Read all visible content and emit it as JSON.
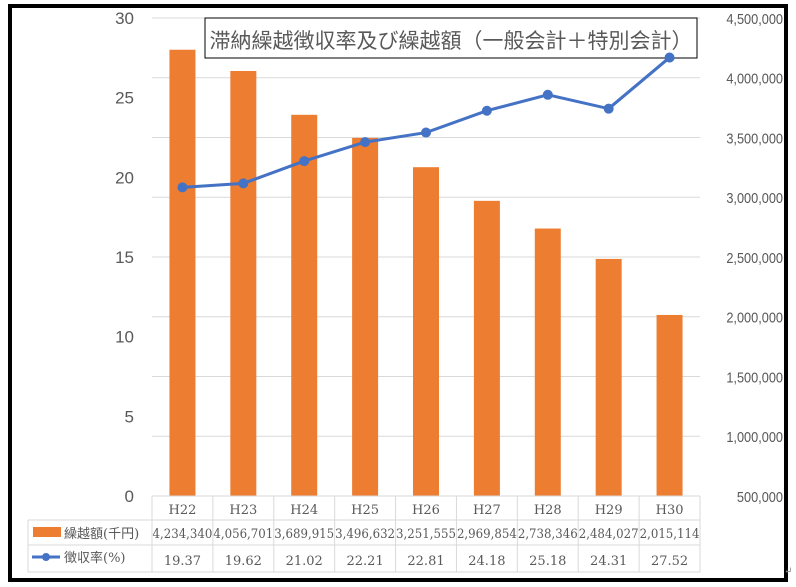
{
  "chart_data": {
    "type": "bar+line",
    "title": "滞納繰越徴収率及び繰越額（一般会計＋特別会計）",
    "categories": [
      "H22",
      "H23",
      "H24",
      "H25",
      "H26",
      "H27",
      "H28",
      "H29",
      "H30"
    ],
    "series": [
      {
        "name": "繰越額(千円)",
        "type": "bar",
        "axis": "right",
        "color": "#ED7D31",
        "values": [
          4234340,
          4056701,
          3689915,
          3496632,
          3251555,
          2969854,
          2738346,
          2484027,
          2015114
        ],
        "labels": [
          "4,234,340",
          "4,056,701",
          "3,689,915",
          "3,496,632",
          "3,251,555",
          "2,969,854",
          "2,738,346",
          "2,484,027",
          "2,015,114"
        ]
      },
      {
        "name": "徴収率(%)",
        "type": "line",
        "axis": "left",
        "color": "#4472C4",
        "values": [
          19.37,
          19.62,
          21.02,
          22.21,
          22.81,
          24.18,
          25.18,
          24.31,
          27.52
        ],
        "labels": [
          "19.37",
          "19.62",
          "21.02",
          "22.21",
          "22.81",
          "24.18",
          "25.18",
          "24.31",
          "27.52"
        ]
      }
    ],
    "left_axis": {
      "ylim": [
        0,
        30
      ],
      "ticks": [
        "0",
        "5",
        "10",
        "15",
        "20",
        "25",
        "30"
      ]
    },
    "right_axis": {
      "ylim": [
        500000,
        4500000
      ],
      "ticks": [
        "500,000",
        "1,000,000",
        "1,500,000",
        "2,000,000",
        "2,500,000",
        "3,000,000",
        "3,500,000",
        "4,000,000",
        "4,500,000"
      ]
    },
    "grid": true,
    "legend": "data-table"
  }
}
